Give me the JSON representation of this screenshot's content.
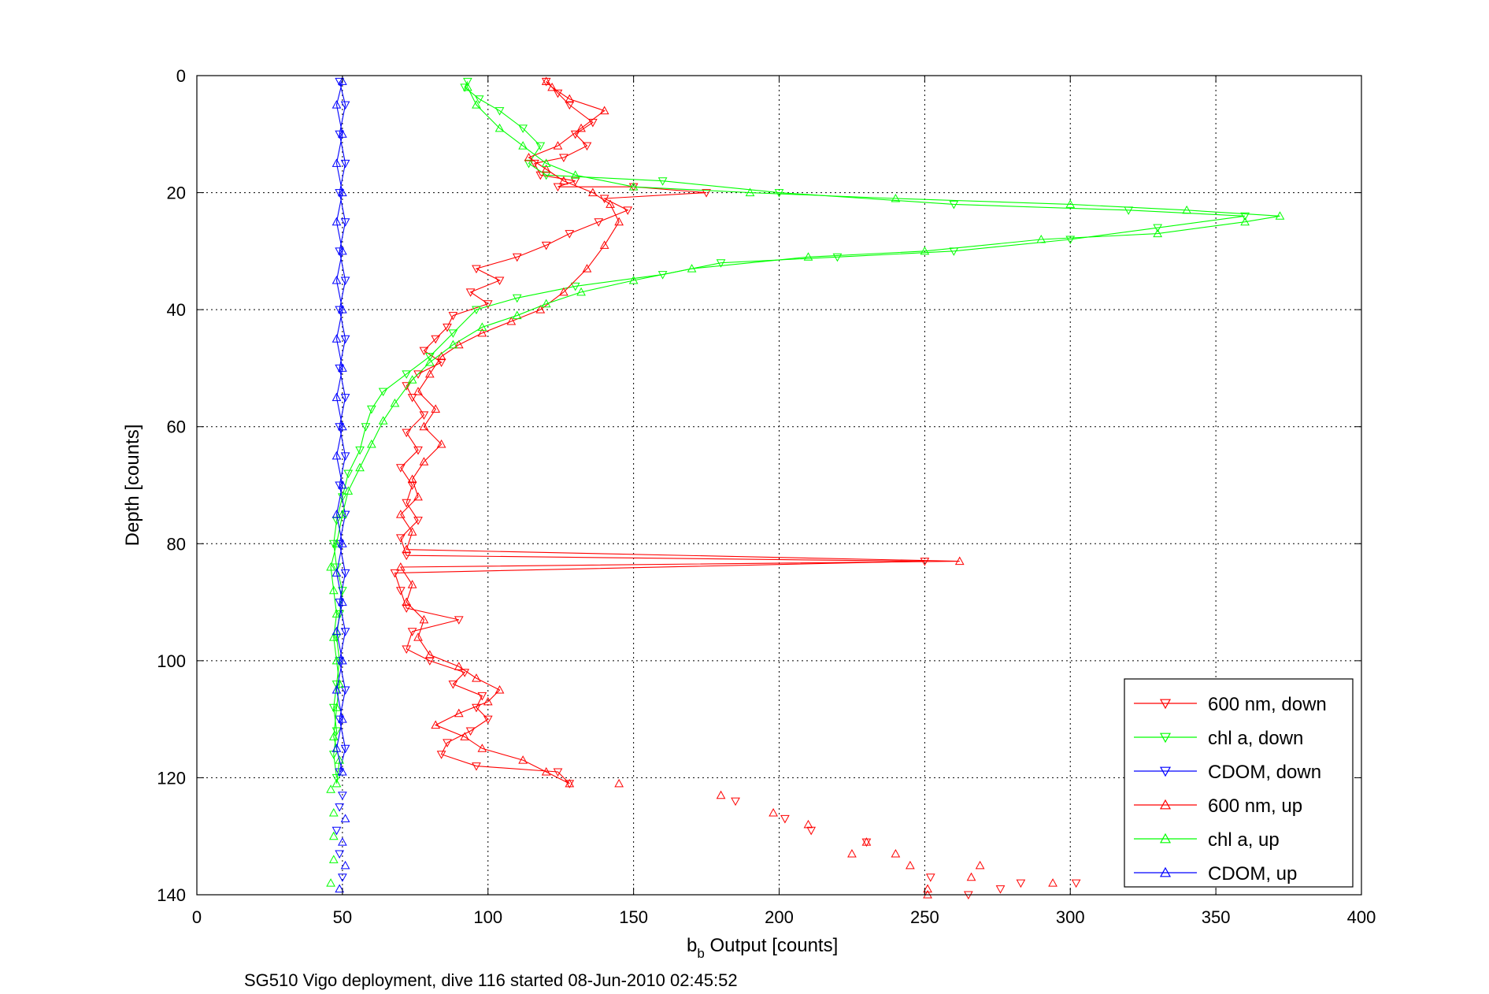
{
  "chart_data": {
    "type": "line",
    "xlabel_main": "b",
    "xlabel_sub": "b",
    "xlabel_rest": " Output [counts]",
    "ylabel": "Depth [counts]",
    "caption": "SG510 Vigo deployment, dive 116 started 08-Jun-2010 02:45:52",
    "xlim": [
      0,
      400
    ],
    "ylim": [
      0,
      140
    ],
    "y_reversed": true,
    "xticks": [
      0,
      50,
      100,
      150,
      200,
      250,
      300,
      350,
      400
    ],
    "yticks": [
      0,
      20,
      40,
      60,
      80,
      100,
      120,
      140
    ],
    "grid": true,
    "legend_position": "bottom-right",
    "series": [
      {
        "name": "600 nm, down",
        "color": "#ff0000",
        "marker": "triangle-down",
        "points": [
          [
            120,
            1
          ],
          [
            124,
            3
          ],
          [
            128,
            5
          ],
          [
            136,
            8
          ],
          [
            130,
            10
          ],
          [
            134,
            12
          ],
          [
            126,
            14
          ],
          [
            116,
            15
          ],
          [
            118,
            17
          ],
          [
            130,
            18
          ],
          [
            124,
            19
          ],
          [
            150,
            19
          ],
          [
            175,
            20
          ],
          [
            140,
            21
          ],
          [
            148,
            23
          ],
          [
            138,
            25
          ],
          [
            128,
            27
          ],
          [
            120,
            29
          ],
          [
            110,
            31
          ],
          [
            96,
            33
          ],
          [
            104,
            35
          ],
          [
            94,
            37
          ],
          [
            100,
            39
          ],
          [
            88,
            41
          ],
          [
            86,
            43
          ],
          [
            82,
            45
          ],
          [
            78,
            47
          ],
          [
            84,
            49
          ],
          [
            76,
            51
          ],
          [
            72,
            53
          ],
          [
            74,
            55
          ],
          [
            78,
            58
          ],
          [
            72,
            61
          ],
          [
            76,
            64
          ],
          [
            70,
            67
          ],
          [
            74,
            70
          ],
          [
            72,
            73
          ],
          [
            76,
            76
          ],
          [
            70,
            79
          ],
          [
            72,
            82
          ],
          [
            250,
            83
          ],
          [
            68,
            85
          ],
          [
            70,
            88
          ],
          [
            72,
            91
          ],
          [
            90,
            93
          ],
          [
            74,
            95
          ],
          [
            72,
            98
          ],
          [
            80,
            100
          ],
          [
            92,
            102
          ],
          [
            88,
            104
          ],
          [
            98,
            106
          ],
          [
            96,
            108
          ],
          [
            100,
            110
          ],
          [
            94,
            112
          ],
          [
            86,
            114
          ],
          [
            84,
            116
          ],
          [
            96,
            118
          ],
          [
            124,
            119
          ],
          [
            128,
            121
          ]
        ]
      },
      {
        "name": "chl a, down",
        "color": "#00ff00",
        "marker": "triangle-down",
        "points": [
          [
            93,
            1
          ],
          [
            92,
            2
          ],
          [
            97,
            4
          ],
          [
            104,
            6
          ],
          [
            112,
            9
          ],
          [
            118,
            12
          ],
          [
            114,
            15
          ],
          [
            120,
            17
          ],
          [
            160,
            18
          ],
          [
            200,
            20
          ],
          [
            260,
            22
          ],
          [
            320,
            23
          ],
          [
            360,
            24
          ],
          [
            330,
            26
          ],
          [
            300,
            28
          ],
          [
            260,
            30
          ],
          [
            220,
            31
          ],
          [
            180,
            32
          ],
          [
            160,
            34
          ],
          [
            130,
            36
          ],
          [
            110,
            38
          ],
          [
            96,
            40
          ],
          [
            88,
            44
          ],
          [
            80,
            48
          ],
          [
            72,
            51
          ],
          [
            64,
            54
          ],
          [
            60,
            57
          ],
          [
            58,
            60
          ],
          [
            56,
            64
          ],
          [
            52,
            68
          ],
          [
            50,
            72
          ],
          [
            48,
            76
          ],
          [
            47,
            80
          ],
          [
            48,
            84
          ],
          [
            50,
            88
          ],
          [
            49,
            92
          ],
          [
            48,
            96
          ],
          [
            49,
            100
          ],
          [
            48,
            104
          ],
          [
            47,
            108
          ],
          [
            48,
            112
          ],
          [
            47,
            116
          ],
          [
            48,
            120
          ]
        ]
      },
      {
        "name": "CDOM, down",
        "color": "#0000ff",
        "marker": "triangle-down",
        "points": [
          [
            49,
            1
          ],
          [
            51,
            5
          ],
          [
            49,
            10
          ],
          [
            51,
            15
          ],
          [
            49,
            20
          ],
          [
            51,
            25
          ],
          [
            49,
            30
          ],
          [
            51,
            35
          ],
          [
            49,
            40
          ],
          [
            51,
            45
          ],
          [
            49,
            50
          ],
          [
            51,
            55
          ],
          [
            49,
            60
          ],
          [
            51,
            65
          ],
          [
            49,
            70
          ],
          [
            51,
            75
          ],
          [
            49,
            80
          ],
          [
            51,
            85
          ],
          [
            49,
            90
          ],
          [
            51,
            95
          ],
          [
            49,
            100
          ],
          [
            51,
            105
          ],
          [
            49,
            110
          ],
          [
            51,
            115
          ],
          [
            49,
            119
          ]
        ]
      },
      {
        "name": "600 nm, up",
        "color": "#ff0000",
        "marker": "triangle-up",
        "points": [
          [
            128,
            121
          ],
          [
            120,
            119
          ],
          [
            112,
            117
          ],
          [
            98,
            115
          ],
          [
            92,
            113
          ],
          [
            82,
            111
          ],
          [
            90,
            109
          ],
          [
            100,
            107
          ],
          [
            104,
            105
          ],
          [
            96,
            103
          ],
          [
            90,
            101
          ],
          [
            80,
            99
          ],
          [
            76,
            96
          ],
          [
            78,
            93
          ],
          [
            72,
            90
          ],
          [
            74,
            87
          ],
          [
            70,
            84
          ],
          [
            262,
            83
          ],
          [
            72,
            81
          ],
          [
            74,
            78
          ],
          [
            70,
            75
          ],
          [
            76,
            72
          ],
          [
            74,
            69
          ],
          [
            78,
            66
          ],
          [
            84,
            63
          ],
          [
            78,
            60
          ],
          [
            82,
            57
          ],
          [
            76,
            54
          ],
          [
            80,
            51
          ],
          [
            84,
            48
          ],
          [
            90,
            46
          ],
          [
            98,
            44
          ],
          [
            108,
            42
          ],
          [
            118,
            40
          ],
          [
            126,
            37
          ],
          [
            134,
            33
          ],
          [
            140,
            29
          ],
          [
            145,
            25
          ],
          [
            142,
            22
          ],
          [
            136,
            20
          ],
          [
            126,
            18
          ],
          [
            120,
            16
          ],
          [
            114,
            14
          ],
          [
            124,
            12
          ],
          [
            132,
            9
          ],
          [
            140,
            6
          ],
          [
            128,
            4
          ],
          [
            122,
            2
          ],
          [
            120,
            1
          ]
        ]
      },
      {
        "name": "chl a, up",
        "color": "#00ff00",
        "marker": "triangle-up",
        "points": [
          [
            48,
            121
          ],
          [
            49,
            117
          ],
          [
            47,
            113
          ],
          [
            48,
            108
          ],
          [
            49,
            104
          ],
          [
            48,
            100
          ],
          [
            47,
            96
          ],
          [
            48,
            92
          ],
          [
            47,
            88
          ],
          [
            46,
            84
          ],
          [
            48,
            80
          ],
          [
            50,
            75
          ],
          [
            52,
            71
          ],
          [
            56,
            67
          ],
          [
            60,
            63
          ],
          [
            64,
            59
          ],
          [
            68,
            56
          ],
          [
            74,
            52
          ],
          [
            80,
            49
          ],
          [
            88,
            46
          ],
          [
            98,
            43
          ],
          [
            110,
            41
          ],
          [
            120,
            39
          ],
          [
            132,
            37
          ],
          [
            150,
            35
          ],
          [
            170,
            33
          ],
          [
            210,
            31
          ],
          [
            250,
            30
          ],
          [
            290,
            28
          ],
          [
            330,
            27
          ],
          [
            360,
            25
          ],
          [
            372,
            24
          ],
          [
            340,
            23
          ],
          [
            300,
            22
          ],
          [
            240,
            21
          ],
          [
            190,
            20
          ],
          [
            150,
            19
          ],
          [
            130,
            17
          ],
          [
            120,
            15
          ],
          [
            112,
            12
          ],
          [
            104,
            9
          ],
          [
            96,
            5
          ],
          [
            93,
            2
          ]
        ]
      },
      {
        "name": "CDOM, up",
        "color": "#0000ff",
        "marker": "triangle-up",
        "points": [
          [
            50,
            119
          ],
          [
            48,
            115
          ],
          [
            50,
            110
          ],
          [
            48,
            105
          ],
          [
            50,
            100
          ],
          [
            48,
            95
          ],
          [
            50,
            90
          ],
          [
            48,
            85
          ],
          [
            50,
            80
          ],
          [
            48,
            75
          ],
          [
            50,
            70
          ],
          [
            48,
            65
          ],
          [
            50,
            60
          ],
          [
            48,
            55
          ],
          [
            50,
            50
          ],
          [
            48,
            45
          ],
          [
            50,
            40
          ],
          [
            48,
            35
          ],
          [
            50,
            30
          ],
          [
            48,
            25
          ],
          [
            50,
            20
          ],
          [
            48,
            15
          ],
          [
            50,
            10
          ],
          [
            48,
            5
          ],
          [
            50,
            1
          ]
        ]
      }
    ],
    "scatter_points": [
      {
        "color": "#ff0000",
        "marker": "triangle-up",
        "x": 145,
        "y": 121
      },
      {
        "color": "#ff0000",
        "marker": "triangle-up",
        "x": 180,
        "y": 123
      },
      {
        "color": "#ff0000",
        "marker": "triangle-down",
        "x": 185,
        "y": 124
      },
      {
        "color": "#ff0000",
        "marker": "triangle-up",
        "x": 198,
        "y": 126
      },
      {
        "color": "#ff0000",
        "marker": "triangle-down",
        "x": 202,
        "y": 127
      },
      {
        "color": "#ff0000",
        "marker": "triangle-up",
        "x": 210,
        "y": 128
      },
      {
        "color": "#ff0000",
        "marker": "triangle-down",
        "x": 211,
        "y": 129
      },
      {
        "color": "#ff0000",
        "marker": "triangle-up",
        "x": 230,
        "y": 131
      },
      {
        "color": "#ff0000",
        "marker": "triangle-down",
        "x": 230,
        "y": 131
      },
      {
        "color": "#ff0000",
        "marker": "triangle-up",
        "x": 225,
        "y": 133
      },
      {
        "color": "#ff0000",
        "marker": "triangle-up",
        "x": 240,
        "y": 133
      },
      {
        "color": "#ff0000",
        "marker": "triangle-up",
        "x": 245,
        "y": 135
      },
      {
        "color": "#ff0000",
        "marker": "triangle-up",
        "x": 269,
        "y": 135
      },
      {
        "color": "#ff0000",
        "marker": "triangle-down",
        "x": 252,
        "y": 137
      },
      {
        "color": "#ff0000",
        "marker": "triangle-up",
        "x": 266,
        "y": 137
      },
      {
        "color": "#ff0000",
        "marker": "triangle-down",
        "x": 283,
        "y": 138
      },
      {
        "color": "#ff0000",
        "marker": "triangle-up",
        "x": 294,
        "y": 138
      },
      {
        "color": "#ff0000",
        "marker": "triangle-down",
        "x": 302,
        "y": 138
      },
      {
        "color": "#ff0000",
        "marker": "triangle-up",
        "x": 251,
        "y": 139
      },
      {
        "color": "#ff0000",
        "marker": "triangle-down",
        "x": 276,
        "y": 139
      },
      {
        "color": "#ff0000",
        "marker": "triangle-down",
        "x": 265,
        "y": 140
      },
      {
        "color": "#ff0000",
        "marker": "triangle-up",
        "x": 251,
        "y": 140
      },
      {
        "color": "#00ff00",
        "marker": "triangle-up",
        "x": 46,
        "y": 122
      },
      {
        "color": "#00ff00",
        "marker": "triangle-up",
        "x": 47,
        "y": 126
      },
      {
        "color": "#00ff00",
        "marker": "triangle-up",
        "x": 47,
        "y": 130
      },
      {
        "color": "#00ff00",
        "marker": "triangle-up",
        "x": 47,
        "y": 134
      },
      {
        "color": "#00ff00",
        "marker": "triangle-up",
        "x": 46,
        "y": 138
      },
      {
        "color": "#0000ff",
        "marker": "triangle-down",
        "x": 50,
        "y": 123
      },
      {
        "color": "#0000ff",
        "marker": "triangle-down",
        "x": 49,
        "y": 125
      },
      {
        "color": "#0000ff",
        "marker": "triangle-up",
        "x": 51,
        "y": 127
      },
      {
        "color": "#0000ff",
        "marker": "triangle-down",
        "x": 48,
        "y": 129
      },
      {
        "color": "#0000ff",
        "marker": "triangle-up",
        "x": 50,
        "y": 131
      },
      {
        "color": "#0000ff",
        "marker": "triangle-down",
        "x": 49,
        "y": 133
      },
      {
        "color": "#0000ff",
        "marker": "triangle-up",
        "x": 51,
        "y": 135
      },
      {
        "color": "#0000ff",
        "marker": "triangle-down",
        "x": 50,
        "y": 137
      },
      {
        "color": "#0000ff",
        "marker": "triangle-up",
        "x": 49,
        "y": 139
      }
    ]
  }
}
